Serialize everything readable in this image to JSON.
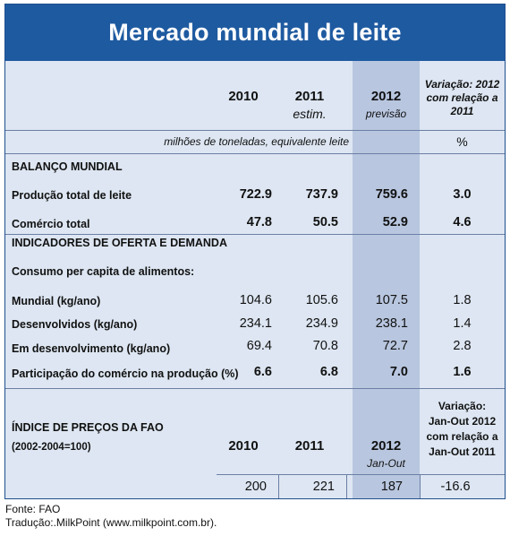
{
  "title": "Mercado mundial de leite",
  "header": {
    "y2010": "2010",
    "y2011": "2011",
    "y2011_note": "estim.",
    "y2012": "2012",
    "y2012_note": "previsão",
    "variation": [
      "Variação: 2012",
      "com relação a",
      "2011"
    ]
  },
  "units": {
    "main": "milhões de toneladas,  equivalente leite",
    "pct": "%"
  },
  "sections": {
    "balanco": "BALANÇO MUNDIAL",
    "indicadores": "INDICADORES DE OFERTA E DEMANDA",
    "consumo": "Consumo per capita de alimentos:"
  },
  "rows": [
    {
      "label": "Produção total de leite",
      "v2010": "722.9",
      "v2011": "737.9",
      "v2012": "759.6",
      "var": "3.0"
    },
    {
      "label": "Comércio total",
      "v2010": "47.8",
      "v2011": "50.5",
      "v2012": "52.9",
      "var": "4.6"
    },
    {
      "label": "Mundial (kg/ano)",
      "v2010": "104.6",
      "v2011": "105.6",
      "v2012": "107.5",
      "var": "1.8"
    },
    {
      "label": "Desenvolvidos (kg/ano)",
      "v2010": "234.1",
      "v2011": "234.9",
      "v2012": "238.1",
      "var": "1.4"
    },
    {
      "label": "Em desenvolvimento (kg/ano)",
      "v2010": "69.4",
      "v2011": "70.8",
      "v2012": "72.7",
      "var": "2.8"
    },
    {
      "label": "Participação do comércio na produção (%)",
      "v2010": "6.6",
      "v2011": "6.8",
      "v2012": "7.0",
      "var": "1.6"
    }
  ],
  "fao": {
    "label": "ÍNDICE DE PREÇOS DA FAO",
    "base": "(2002-2004=100)",
    "y2010": "2010",
    "y2011": "2011",
    "y2012": "2012",
    "y2012_note": "Jan-Out",
    "variation": [
      "Variação:",
      "Jan-Out 2012",
      "com relação a",
      "Jan-Out 2011"
    ],
    "v2010": "200",
    "v2011": "221",
    "v2012": "187",
    "var": "-16.6"
  },
  "footer": {
    "source": "Fonte: FAO",
    "translation": "Tradução:.MilkPoint (www.milkpoint.com.br)."
  }
}
